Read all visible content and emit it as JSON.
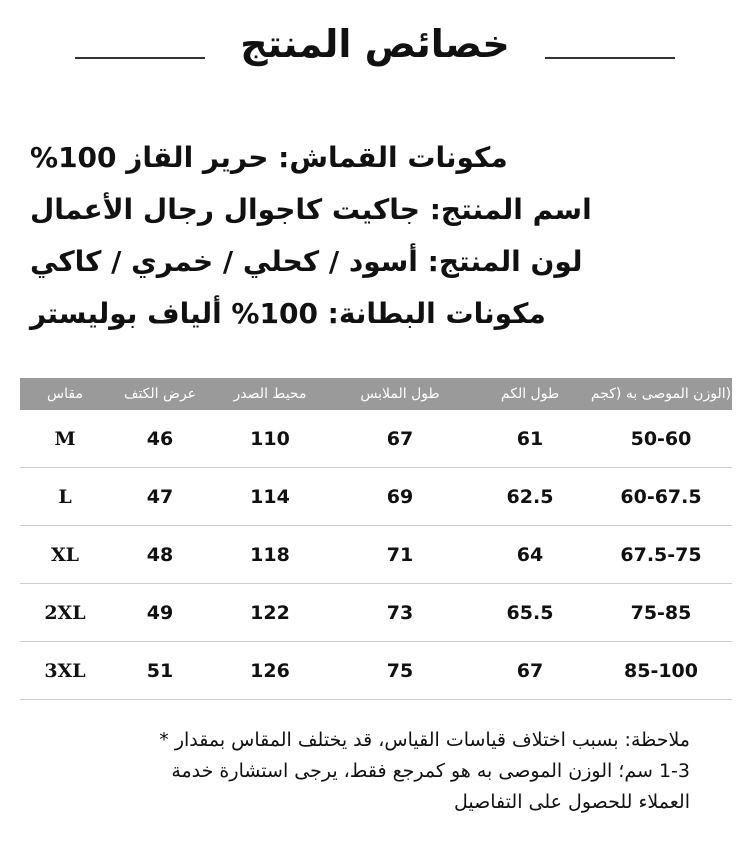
{
  "title": "خصائص المنتج",
  "specs": [
    "مكونات القماش: حرير القاز 100%",
    "اسم المنتج: جاكيت كاجوال رجال الأعمال",
    "لون المنتج: أسود / كحلي / خمري / كاكي",
    "مكونات البطانة: 100% ألياف بوليستر"
  ],
  "table": {
    "headers": [
      "مقاس",
      "عرض الكتف",
      "محيط الصدر",
      "طول الملابس",
      "طول الكم",
      "(الوزن الموصى به (كجم"
    ],
    "rows": [
      [
        "M",
        "46",
        "110",
        "67",
        "61",
        "50-60"
      ],
      [
        "L",
        "47",
        "114",
        "69",
        "62.5",
        "60-67.5"
      ],
      [
        "XL",
        "48",
        "118",
        "71",
        "64",
        "67.5-75"
      ],
      [
        "2XL",
        "49",
        "122",
        "73",
        "65.5",
        "75-85"
      ],
      [
        "3XL",
        "51",
        "126",
        "75",
        "67",
        "85-100"
      ]
    ],
    "header_color": "#9a9a9a"
  },
  "note": [
    "ملاحظة: بسبب اختلاف قياسات القياس، قد يختلف المقاس بمقدار *",
    "1-3 سم؛ الوزن الموصى به هو كمرجع فقط، يرجى استشارة خدمة",
    "العملاء للحصول على التفاصيل"
  ]
}
